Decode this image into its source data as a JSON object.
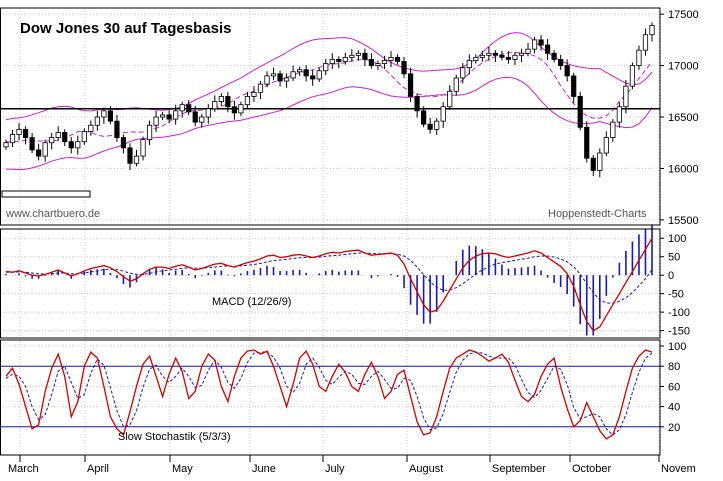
{
  "chart_data": [
    {
      "type": "candlestick",
      "title": "Dow Jones 30 auf Tagesbasis",
      "watermark_left": "www.chartbuero.de",
      "watermark_right": "Hoppenstedt-Charts",
      "ylim": [
        15500,
        17500
      ],
      "y_ticks": [
        "17500",
        "17000",
        "16500",
        "16000",
        "15500"
      ],
      "y_tick_values": [
        17500,
        17000,
        16500,
        16000,
        15500
      ],
      "horizontal_level": 16580,
      "overlays": [
        "price",
        "envelope-upper",
        "envelope-lower",
        "moving-average"
      ],
      "x_categories": [
        "March",
        "April",
        "May",
        "June",
        "July",
        "August",
        "September",
        "October",
        "Novem"
      ],
      "close_series": [
        16250,
        16330,
        16380,
        16300,
        16180,
        16120,
        16250,
        16300,
        16350,
        16260,
        16200,
        16260,
        16360,
        16420,
        16500,
        16560,
        16460,
        16300,
        16200,
        16050,
        16120,
        16280,
        16420,
        16500,
        16520,
        16480,
        16560,
        16620,
        16550,
        16450,
        16500,
        16580,
        16650,
        16700,
        16600,
        16540,
        16620,
        16700,
        16740,
        16820,
        16900,
        16920,
        16850,
        16880,
        16940,
        16960,
        16900,
        16870,
        16950,
        17020,
        17060,
        17040,
        17080,
        17100,
        17120,
        17060,
        17000,
        17020,
        17050,
        17080,
        17040,
        16920,
        16700,
        16560,
        16430,
        16380,
        16460,
        16600,
        16750,
        16880,
        16980,
        17050,
        17080,
        17100,
        17120,
        17100,
        17080,
        17060,
        17100,
        17120,
        17160,
        17250,
        17200,
        17120,
        17060,
        17000,
        16900,
        16700,
        16400,
        16100,
        15980,
        16150,
        16300,
        16450,
        16600,
        16800,
        17000,
        17150,
        17300,
        17390
      ]
    },
    {
      "type": "line",
      "name": "MACD (12/26/9)",
      "ylim": [
        -150,
        100
      ],
      "y_ticks": [
        "100",
        "50",
        "0",
        "-50",
        "-100",
        "-150"
      ],
      "y_tick_values": [
        100,
        50,
        0,
        -50,
        -100,
        -150
      ],
      "macd": [
        10,
        8,
        12,
        6,
        0,
        -2,
        2,
        8,
        14,
        6,
        -2,
        4,
        12,
        18,
        22,
        26,
        20,
        10,
        -4,
        -16,
        -10,
        4,
        16,
        22,
        22,
        18,
        24,
        28,
        22,
        14,
        18,
        24,
        30,
        32,
        26,
        22,
        28,
        34,
        38,
        44,
        52,
        54,
        48,
        50,
        54,
        56,
        52,
        48,
        52,
        58,
        62,
        60,
        64,
        66,
        68,
        60,
        54,
        56,
        58,
        60,
        54,
        30,
        -10,
        -45,
        -80,
        -100,
        -95,
        -70,
        -40,
        -10,
        20,
        40,
        52,
        58,
        60,
        58,
        52,
        48,
        52,
        56,
        60,
        66,
        60,
        48,
        36,
        24,
        4,
        -30,
        -80,
        -125,
        -150,
        -140,
        -110,
        -80,
        -50,
        -20,
        10,
        40,
        70,
        100
      ],
      "signal": [
        8,
        8,
        9,
        8,
        6,
        4,
        3,
        4,
        6,
        6,
        4,
        4,
        6,
        9,
        12,
        15,
        16,
        15,
        11,
        5,
        2,
        2,
        5,
        9,
        12,
        14,
        16,
        19,
        20,
        19,
        19,
        20,
        22,
        24,
        25,
        24,
        25,
        27,
        29,
        32,
        36,
        40,
        41,
        43,
        45,
        47,
        48,
        48,
        49,
        51,
        53,
        54,
        56,
        58,
        60,
        60,
        59,
        58,
        58,
        58,
        57,
        52,
        40,
        22,
        2,
        -18,
        -33,
        -41,
        -40,
        -34,
        -23,
        -10,
        3,
        14,
        23,
        30,
        34,
        37,
        40,
        43,
        46,
        50,
        52,
        52,
        49,
        44,
        36,
        23,
        3,
        -23,
        -48,
        -66,
        -75,
        -76,
        -71,
        -61,
        -47,
        -29,
        -9,
        14
      ]
    },
    {
      "type": "line",
      "name": "Slow Stochastik (5/3/3)",
      "ylim": [
        0,
        100
      ],
      "y_ticks": [
        "100",
        "80",
        "60",
        "40",
        "20"
      ],
      "y_tick_values": [
        100,
        80,
        60,
        40,
        20
      ],
      "bands": [
        80,
        20
      ],
      "k_line": [
        70,
        78,
        62,
        40,
        18,
        22,
        55,
        78,
        92,
        70,
        30,
        45,
        80,
        94,
        88,
        60,
        30,
        18,
        12,
        35,
        60,
        82,
        90,
        70,
        50,
        72,
        88,
        75,
        48,
        55,
        80,
        92,
        86,
        60,
        45,
        70,
        88,
        95,
        96,
        92,
        95,
        80,
        60,
        40,
        62,
        88,
        95,
        82,
        60,
        55,
        70,
        82,
        74,
        60,
        55,
        72,
        84,
        70,
        48,
        55,
        72,
        76,
        50,
        25,
        12,
        14,
        30,
        55,
        78,
        88,
        92,
        96,
        94,
        90,
        85,
        88,
        92,
        84,
        66,
        50,
        45,
        52,
        70,
        82,
        88,
        60,
        38,
        20,
        26,
        44,
        30,
        16,
        8,
        12,
        30,
        55,
        78,
        90,
        96,
        94
      ],
      "d_line": [
        68,
        72,
        70,
        60,
        40,
        27,
        32,
        52,
        75,
        80,
        64,
        48,
        52,
        73,
        87,
        81,
        59,
        36,
        20,
        22,
        36,
        59,
        77,
        81,
        70,
        64,
        70,
        78,
        70,
        59,
        61,
        76,
        86,
        79,
        64,
        58,
        68,
        84,
        93,
        94,
        94,
        89,
        78,
        60,
        54,
        63,
        82,
        88,
        79,
        66,
        62,
        69,
        75,
        72,
        63,
        62,
        70,
        75,
        67,
        58,
        58,
        68,
        66,
        50,
        29,
        17,
        19,
        33,
        54,
        74,
        86,
        92,
        94,
        93,
        90,
        88,
        88,
        88,
        81,
        67,
        54,
        49,
        56,
        68,
        80,
        77,
        62,
        39,
        28,
        30,
        33,
        30,
        18,
        12,
        17,
        32,
        54,
        74,
        88,
        93
      ],
      "watermark_month_labels": [
        "March",
        "April",
        "May",
        "June",
        "July",
        "August",
        "September",
        "October",
        "Novem"
      ]
    }
  ]
}
